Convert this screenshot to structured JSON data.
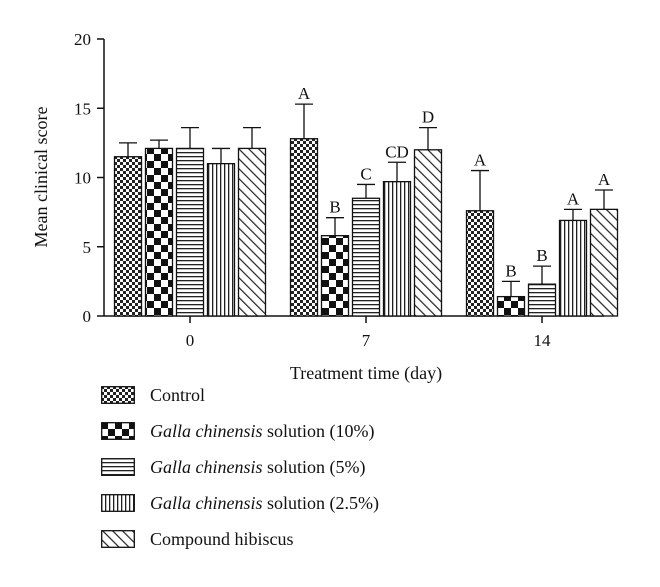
{
  "chart_data": {
    "type": "bar",
    "xlabel": "Treatment time (day)",
    "ylabel": "Mean clinical score",
    "categories": [
      "0",
      "7",
      "14"
    ],
    "ylim": [
      0,
      20
    ],
    "yticks": [
      0,
      5,
      10,
      15,
      20
    ],
    "grid": false,
    "legend_position": "bottom",
    "error_bars": true,
    "series": [
      {
        "name": "Control",
        "name_italic": "",
        "name_rest": "Control",
        "pattern": "fine-checker",
        "values": [
          11.5,
          12.8,
          7.6
        ],
        "errors": [
          1.0,
          2.5,
          2.9
        ],
        "letters": [
          "",
          "A",
          "A"
        ]
      },
      {
        "name": "Galla chinensis solution (10%)",
        "name_italic": "Galla chinensis",
        "name_rest": " solution (10%)",
        "pattern": "coarse-checker",
        "values": [
          12.1,
          5.8,
          1.4
        ],
        "errors": [
          0.6,
          1.3,
          1.1
        ],
        "letters": [
          "",
          "B",
          "B"
        ]
      },
      {
        "name": "Galla chinensis solution (5%)",
        "name_italic": "Galla chinensis",
        "name_rest": " solution (5%)",
        "pattern": "horizontal-lines",
        "values": [
          12.1,
          8.5,
          2.3
        ],
        "errors": [
          1.5,
          1.0,
          1.3
        ],
        "letters": [
          "",
          "C",
          "B"
        ]
      },
      {
        "name": "Galla chinensis solution (2.5%)",
        "name_italic": "Galla chinensis",
        "name_rest": " solution (2.5%)",
        "pattern": "vertical-lines",
        "values": [
          11.0,
          9.7,
          6.9
        ],
        "errors": [
          1.1,
          1.4,
          0.8
        ],
        "letters": [
          "",
          "CD",
          "A"
        ]
      },
      {
        "name": "Compound hibiscus",
        "name_italic": "",
        "name_rest": "Compound hibiscus",
        "pattern": "diagonal-lines",
        "values": [
          12.1,
          12.0,
          7.7
        ],
        "errors": [
          1.5,
          1.6,
          1.4
        ],
        "letters": [
          "",
          "D",
          "A"
        ]
      }
    ]
  }
}
